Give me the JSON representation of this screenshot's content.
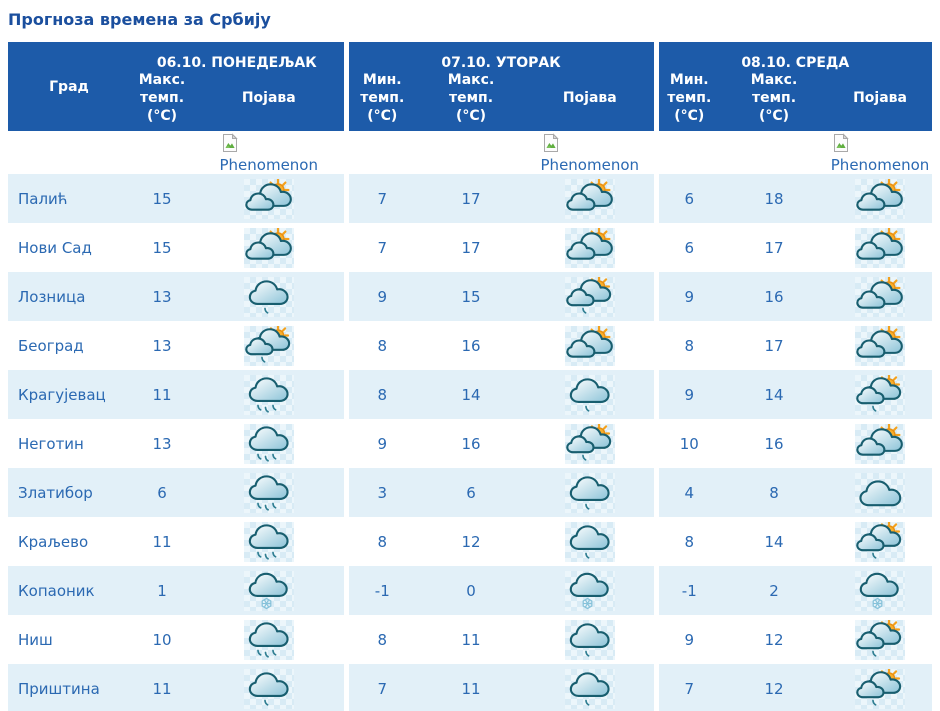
{
  "title": "Прогноза времена за Србију",
  "colors": {
    "header_bg": "#1d5ba9",
    "title_text": "#1b4f9e",
    "cell_text": "#2b69b2",
    "row_alt_bg": "#e2f0f8",
    "sun": "#f9ae2a",
    "cloud_outline": "#185e6f"
  },
  "header": {
    "city": "Град",
    "groups": [
      {
        "key": "monday",
        "date": "06.10. ПОНЕДЕЉАК",
        "columns": [
          {
            "key": "max",
            "label": "Макс.\nтемп.\n(°C)"
          },
          {
            "key": "pojava",
            "label": "Појава"
          }
        ]
      },
      {
        "key": "tuesday",
        "date": "07.10. УТОРАК",
        "columns": [
          {
            "key": "min",
            "label": "Мин.\nтемп.\n(°C)"
          },
          {
            "key": "max",
            "label": "Макс.\nтемп.\n(°C)"
          },
          {
            "key": "pojava",
            "label": "Појава"
          }
        ]
      },
      {
        "key": "wednesday",
        "date": "08.10. СРЕДА",
        "columns": [
          {
            "key": "min",
            "label": "Мин.\nтемп.\n(°C)"
          },
          {
            "key": "max",
            "label": "Макс.\nтемп.\n(°C)"
          },
          {
            "key": "pojava",
            "label": "Појава"
          }
        ]
      }
    ]
  },
  "phenomenon_alt_text": "Phenomenon",
  "rows": [
    {
      "city": "Палић",
      "monday": {
        "max": 15,
        "icon": "sun-clouds"
      },
      "tuesday": {
        "min": 7,
        "max": 17,
        "icon": "sun-clouds"
      },
      "wednesday": {
        "min": 6,
        "max": 18,
        "icon": "sun-clouds"
      }
    },
    {
      "city": "Нови Сад",
      "monday": {
        "max": 15,
        "icon": "sun-clouds"
      },
      "tuesday": {
        "min": 7,
        "max": 17,
        "icon": "sun-clouds"
      },
      "wednesday": {
        "min": 6,
        "max": 17,
        "icon": "sun-clouds"
      }
    },
    {
      "city": "Лозница",
      "monday": {
        "max": 13,
        "icon": "cloud-drizzle"
      },
      "tuesday": {
        "min": 9,
        "max": 15,
        "icon": "sun-clouds-drizzle"
      },
      "wednesday": {
        "min": 9,
        "max": 16,
        "icon": "sun-clouds"
      }
    },
    {
      "city": "Београд",
      "monday": {
        "max": 13,
        "icon": "sun-clouds-drizzle"
      },
      "tuesday": {
        "min": 8,
        "max": 16,
        "icon": "sun-clouds"
      },
      "wednesday": {
        "min": 8,
        "max": 17,
        "icon": "sun-clouds"
      }
    },
    {
      "city": "Крагујевац",
      "monday": {
        "max": 11,
        "icon": "cloud-rain"
      },
      "tuesday": {
        "min": 8,
        "max": 14,
        "icon": "cloud-drizzle"
      },
      "wednesday": {
        "min": 9,
        "max": 14,
        "icon": "sun-clouds-drizzle"
      }
    },
    {
      "city": "Неготин",
      "monday": {
        "max": 13,
        "icon": "cloud-rain"
      },
      "tuesday": {
        "min": 9,
        "max": 16,
        "icon": "sun-clouds-drizzle"
      },
      "wednesday": {
        "min": 10,
        "max": 16,
        "icon": "sun-clouds"
      }
    },
    {
      "city": "Златибор",
      "monday": {
        "max": 6,
        "icon": "cloud-rain"
      },
      "tuesday": {
        "min": 3,
        "max": 6,
        "icon": "cloud-drizzle"
      },
      "wednesday": {
        "min": 4,
        "max": 8,
        "icon": "cloudy"
      }
    },
    {
      "city": "Краљево",
      "monday": {
        "max": 11,
        "icon": "cloud-rain"
      },
      "tuesday": {
        "min": 8,
        "max": 12,
        "icon": "cloud-drizzle"
      },
      "wednesday": {
        "min": 8,
        "max": 14,
        "icon": "sun-clouds-drizzle"
      }
    },
    {
      "city": "Копаоник",
      "monday": {
        "max": 1,
        "icon": "cloud-snow"
      },
      "tuesday": {
        "min": -1,
        "max": 0,
        "icon": "cloud-snow"
      },
      "wednesday": {
        "min": -1,
        "max": 2,
        "icon": "cloud-snow"
      }
    },
    {
      "city": "Ниш",
      "monday": {
        "max": 10,
        "icon": "cloud-rain"
      },
      "tuesday": {
        "min": 8,
        "max": 11,
        "icon": "cloud-drizzle"
      },
      "wednesday": {
        "min": 9,
        "max": 12,
        "icon": "sun-clouds-drizzle"
      }
    },
    {
      "city": "Приштина",
      "monday": {
        "max": 11,
        "icon": "cloud-drizzle"
      },
      "tuesday": {
        "min": 7,
        "max": 11,
        "icon": "cloud-drizzle"
      },
      "wednesday": {
        "min": 7,
        "max": 12,
        "icon": "sun-clouds-drizzle"
      }
    }
  ]
}
